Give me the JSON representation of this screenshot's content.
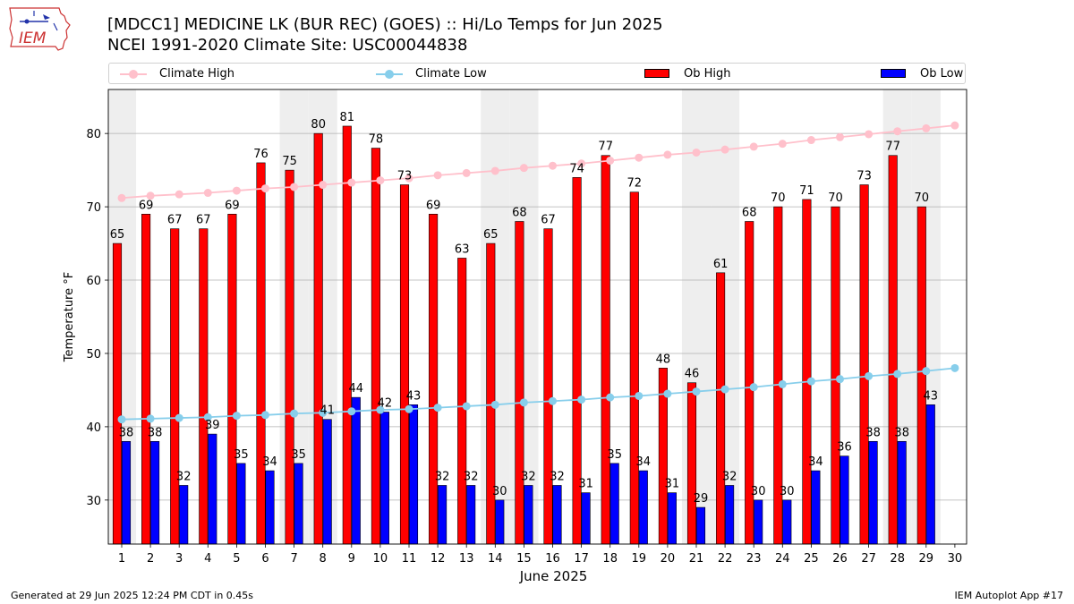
{
  "logo": {
    "text": "IEM"
  },
  "header": {
    "title_line1": "[MDCC1] MEDICINE LK (BUR REC) (GOES) :: Hi/Lo Temps for Jun 2025",
    "title_line2": "NCEI 1991-2020 Climate Site: USC00044838"
  },
  "legend": {
    "climate_high": "Climate High",
    "climate_low": "Climate Low",
    "ob_high": "Ob High",
    "ob_low": "Ob Low"
  },
  "colors": {
    "climate_high": "#ffc0cb",
    "climate_low": "#87ceeb",
    "ob_high": "#ff0000",
    "ob_low": "#0000ff",
    "weekend_band": "#eeeeee"
  },
  "footer": {
    "left": "Generated at 29 Jun 2025 12:24 PM CDT in 0.45s",
    "right": "IEM Autoplot App #17"
  },
  "chart_data": {
    "type": "bar",
    "title": "[MDCC1] MEDICINE LK (BUR REC) (GOES) :: Hi/Lo Temps for Jun 2025",
    "subtitle": "NCEI 1991-2020 Climate Site: USC00044838",
    "xlabel": "June 2025",
    "ylabel": "Temperature °F",
    "ylim": [
      24,
      86
    ],
    "yticks": [
      30,
      40,
      50,
      60,
      70,
      80
    ],
    "grid": true,
    "legend_position": "top",
    "categories": [
      "1",
      "2",
      "3",
      "4",
      "5",
      "6",
      "7",
      "8",
      "9",
      "10",
      "11",
      "12",
      "13",
      "14",
      "15",
      "16",
      "17",
      "18",
      "19",
      "20",
      "21",
      "22",
      "23",
      "24",
      "25",
      "26",
      "27",
      "28",
      "29",
      "30"
    ],
    "shaded_days": [
      "1",
      "7",
      "8",
      "14",
      "15",
      "21",
      "22",
      "28",
      "29"
    ],
    "series": [
      {
        "name": "Ob High",
        "type": "bar",
        "values": [
          65,
          69,
          67,
          67,
          69,
          76,
          75,
          80,
          81,
          78,
          73,
          69,
          63,
          65,
          68,
          67,
          74,
          77,
          72,
          48,
          46,
          61,
          68,
          70,
          71,
          70,
          73,
          77,
          70,
          null
        ]
      },
      {
        "name": "Ob Low",
        "type": "bar",
        "values": [
          38,
          38,
          32,
          39,
          35,
          34,
          35,
          41,
          44,
          42,
          43,
          32,
          32,
          30,
          32,
          32,
          31,
          35,
          34,
          31,
          29,
          32,
          30,
          30,
          34,
          36,
          38,
          38,
          43,
          null
        ]
      },
      {
        "name": "Climate High",
        "type": "line",
        "values": [
          71.2,
          71.5,
          71.7,
          71.9,
          72.2,
          72.5,
          72.7,
          73.0,
          73.3,
          73.6,
          73.9,
          74.3,
          74.6,
          74.9,
          75.3,
          75.6,
          75.9,
          76.3,
          76.7,
          77.1,
          77.4,
          77.8,
          78.2,
          78.6,
          79.1,
          79.5,
          79.9,
          80.3,
          80.7,
          81.1
        ]
      },
      {
        "name": "Climate Low",
        "type": "line",
        "values": [
          41.0,
          41.1,
          41.2,
          41.3,
          41.5,
          41.6,
          41.8,
          41.9,
          42.1,
          42.3,
          42.4,
          42.6,
          42.8,
          43.0,
          43.3,
          43.5,
          43.7,
          44.0,
          44.2,
          44.5,
          44.8,
          45.1,
          45.4,
          45.8,
          46.2,
          46.5,
          46.9,
          47.2,
          47.6,
          48.0
        ]
      }
    ]
  }
}
